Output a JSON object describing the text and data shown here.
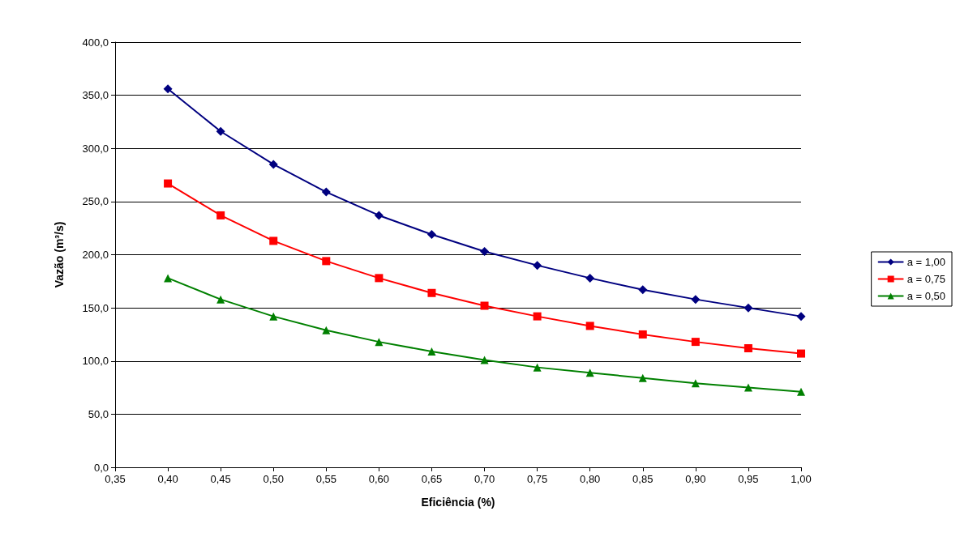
{
  "chart_data": {
    "type": "line",
    "xlabel": "Eficiência (%)",
    "ylabel": "Vazão (m³/s)",
    "x": [
      0.4,
      0.45,
      0.5,
      0.55,
      0.6,
      0.65,
      0.7,
      0.75,
      0.8,
      0.85,
      0.9,
      0.95,
      1.0
    ],
    "series": [
      {
        "name": "a = 1,00",
        "color": "#000080",
        "marker": "diamond",
        "values": [
          356,
          316,
          285,
          259,
          237,
          219,
          203,
          190,
          178,
          167,
          158,
          150,
          142
        ]
      },
      {
        "name": "a = 0,75",
        "color": "#ff0000",
        "marker": "square",
        "values": [
          267,
          237,
          213,
          194,
          178,
          164,
          152,
          142,
          133,
          125,
          118,
          112,
          107
        ]
      },
      {
        "name": "a = 0,50",
        "color": "#008000",
        "marker": "triangle",
        "values": [
          178,
          158,
          142,
          129,
          118,
          109,
          101,
          94,
          89,
          84,
          79,
          75,
          71
        ]
      }
    ],
    "xlim": [
      0.35,
      1.0
    ],
    "xticks": [
      {
        "value": 0.35,
        "label": "0,35"
      },
      {
        "value": 0.4,
        "label": "0,40"
      },
      {
        "value": 0.45,
        "label": "0,45"
      },
      {
        "value": 0.5,
        "label": "0,50"
      },
      {
        "value": 0.55,
        "label": "0,55"
      },
      {
        "value": 0.6,
        "label": "0,60"
      },
      {
        "value": 0.65,
        "label": "0,65"
      },
      {
        "value": 0.7,
        "label": "0,70"
      },
      {
        "value": 0.75,
        "label": "0,75"
      },
      {
        "value": 0.8,
        "label": "0,80"
      },
      {
        "value": 0.85,
        "label": "0,85"
      },
      {
        "value": 0.9,
        "label": "0,90"
      },
      {
        "value": 0.95,
        "label": "0,95"
      },
      {
        "value": 1.0,
        "label": "1,00"
      }
    ],
    "ylim": [
      0,
      400
    ],
    "yticks": [
      {
        "value": 0,
        "label": "0,0"
      },
      {
        "value": 50,
        "label": "50,0"
      },
      {
        "value": 100,
        "label": "100,0"
      },
      {
        "value": 150,
        "label": "150,0"
      },
      {
        "value": 200,
        "label": "200,0"
      },
      {
        "value": 250,
        "label": "250,0"
      },
      {
        "value": 300,
        "label": "300,0"
      },
      {
        "value": 350,
        "label": "350,0"
      },
      {
        "value": 400,
        "label": "400,0"
      }
    ],
    "grid": "y",
    "legend": "right",
    "line_style": "solid"
  }
}
